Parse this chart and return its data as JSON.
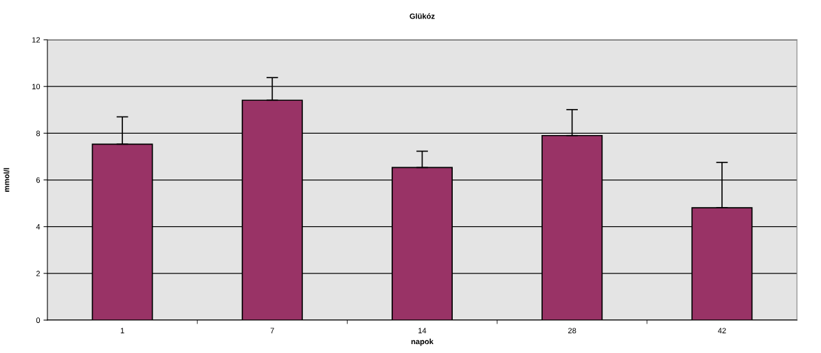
{
  "chart_data": {
    "type": "bar",
    "title": "Glükóz",
    "xlabel": "napok",
    "ylabel": "mmol/l",
    "categories": [
      "1",
      "7",
      "14",
      "28",
      "42"
    ],
    "values": [
      7.53,
      9.41,
      6.53,
      7.9,
      4.81
    ],
    "errors": [
      [
        7.53,
        8.7
      ],
      [
        9.41,
        10.38
      ],
      [
        6.53,
        7.23
      ],
      [
        7.9,
        9.01
      ],
      [
        4.81,
        6.75
      ]
    ],
    "color": "#993366",
    "ylim": [
      0,
      12
    ],
    "yticks": [
      0,
      2,
      4,
      6,
      8,
      10,
      12
    ],
    "grid": "y"
  }
}
